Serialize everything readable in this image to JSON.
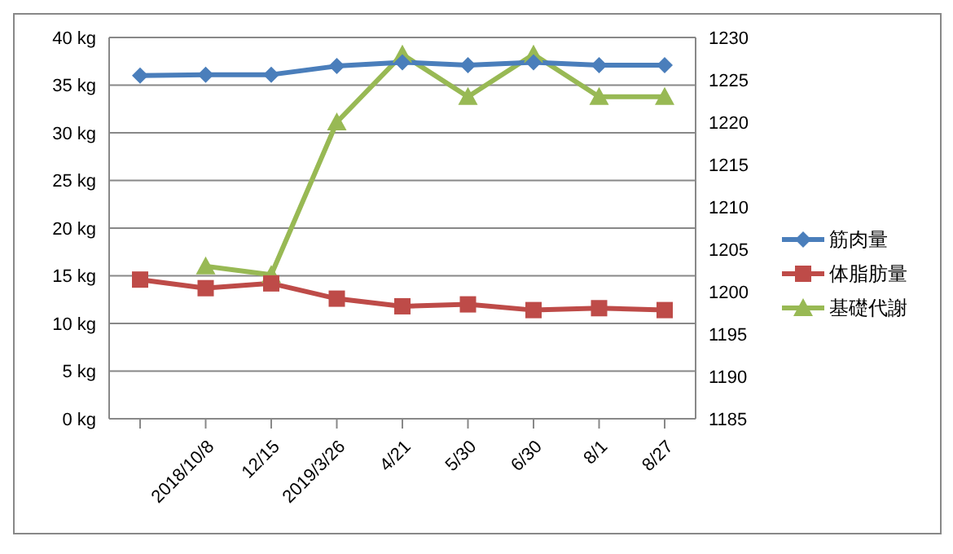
{
  "chart_data": {
    "type": "line",
    "categories": [
      null,
      "2018/10/8",
      "12/15",
      "2019/3/26",
      "4/21",
      "5/30",
      "6/30",
      "8/1",
      "8/27"
    ],
    "series": [
      {
        "name": "筋肉量",
        "color": "#4a7ebb",
        "marker": "diamond",
        "values": [
          36,
          36.1,
          36.1,
          37,
          37.4,
          37.1,
          37.4,
          37.1,
          37.1
        ]
      },
      {
        "name": "体脂肪量",
        "color": "#be4b48",
        "marker": "square",
        "values": [
          14.6,
          13.7,
          14.2,
          12.6,
          11.8,
          12,
          11.4,
          11.6,
          11.4
        ]
      },
      {
        "name": "基礎代謝",
        "color": "#98b954",
        "marker": "triangle",
        "axis": "y2",
        "values": [
          null,
          1203,
          1202,
          1220,
          1228,
          1223,
          1228,
          1223,
          1223
        ]
      }
    ],
    "ylim": [
      0,
      40
    ],
    "yticks": [
      {
        "value": 0,
        "label": "0 kg"
      },
      {
        "value": 5,
        "label": "5 kg"
      },
      {
        "value": 10,
        "label": "10 kg"
      },
      {
        "value": 15,
        "label": "15 kg"
      },
      {
        "value": 20,
        "label": "20 kg"
      },
      {
        "value": 25,
        "label": "25 kg"
      },
      {
        "value": 30,
        "label": "30 kg"
      },
      {
        "value": 35,
        "label": "35 kg"
      },
      {
        "value": 40,
        "label": "40 kg"
      }
    ],
    "y2lim": [
      1185,
      1230
    ],
    "y2ticks": [
      1185,
      1190,
      1195,
      1200,
      1205,
      1210,
      1215,
      1220,
      1225,
      1230
    ],
    "grid": "y",
    "legend": "right",
    "line_style": "solid"
  }
}
